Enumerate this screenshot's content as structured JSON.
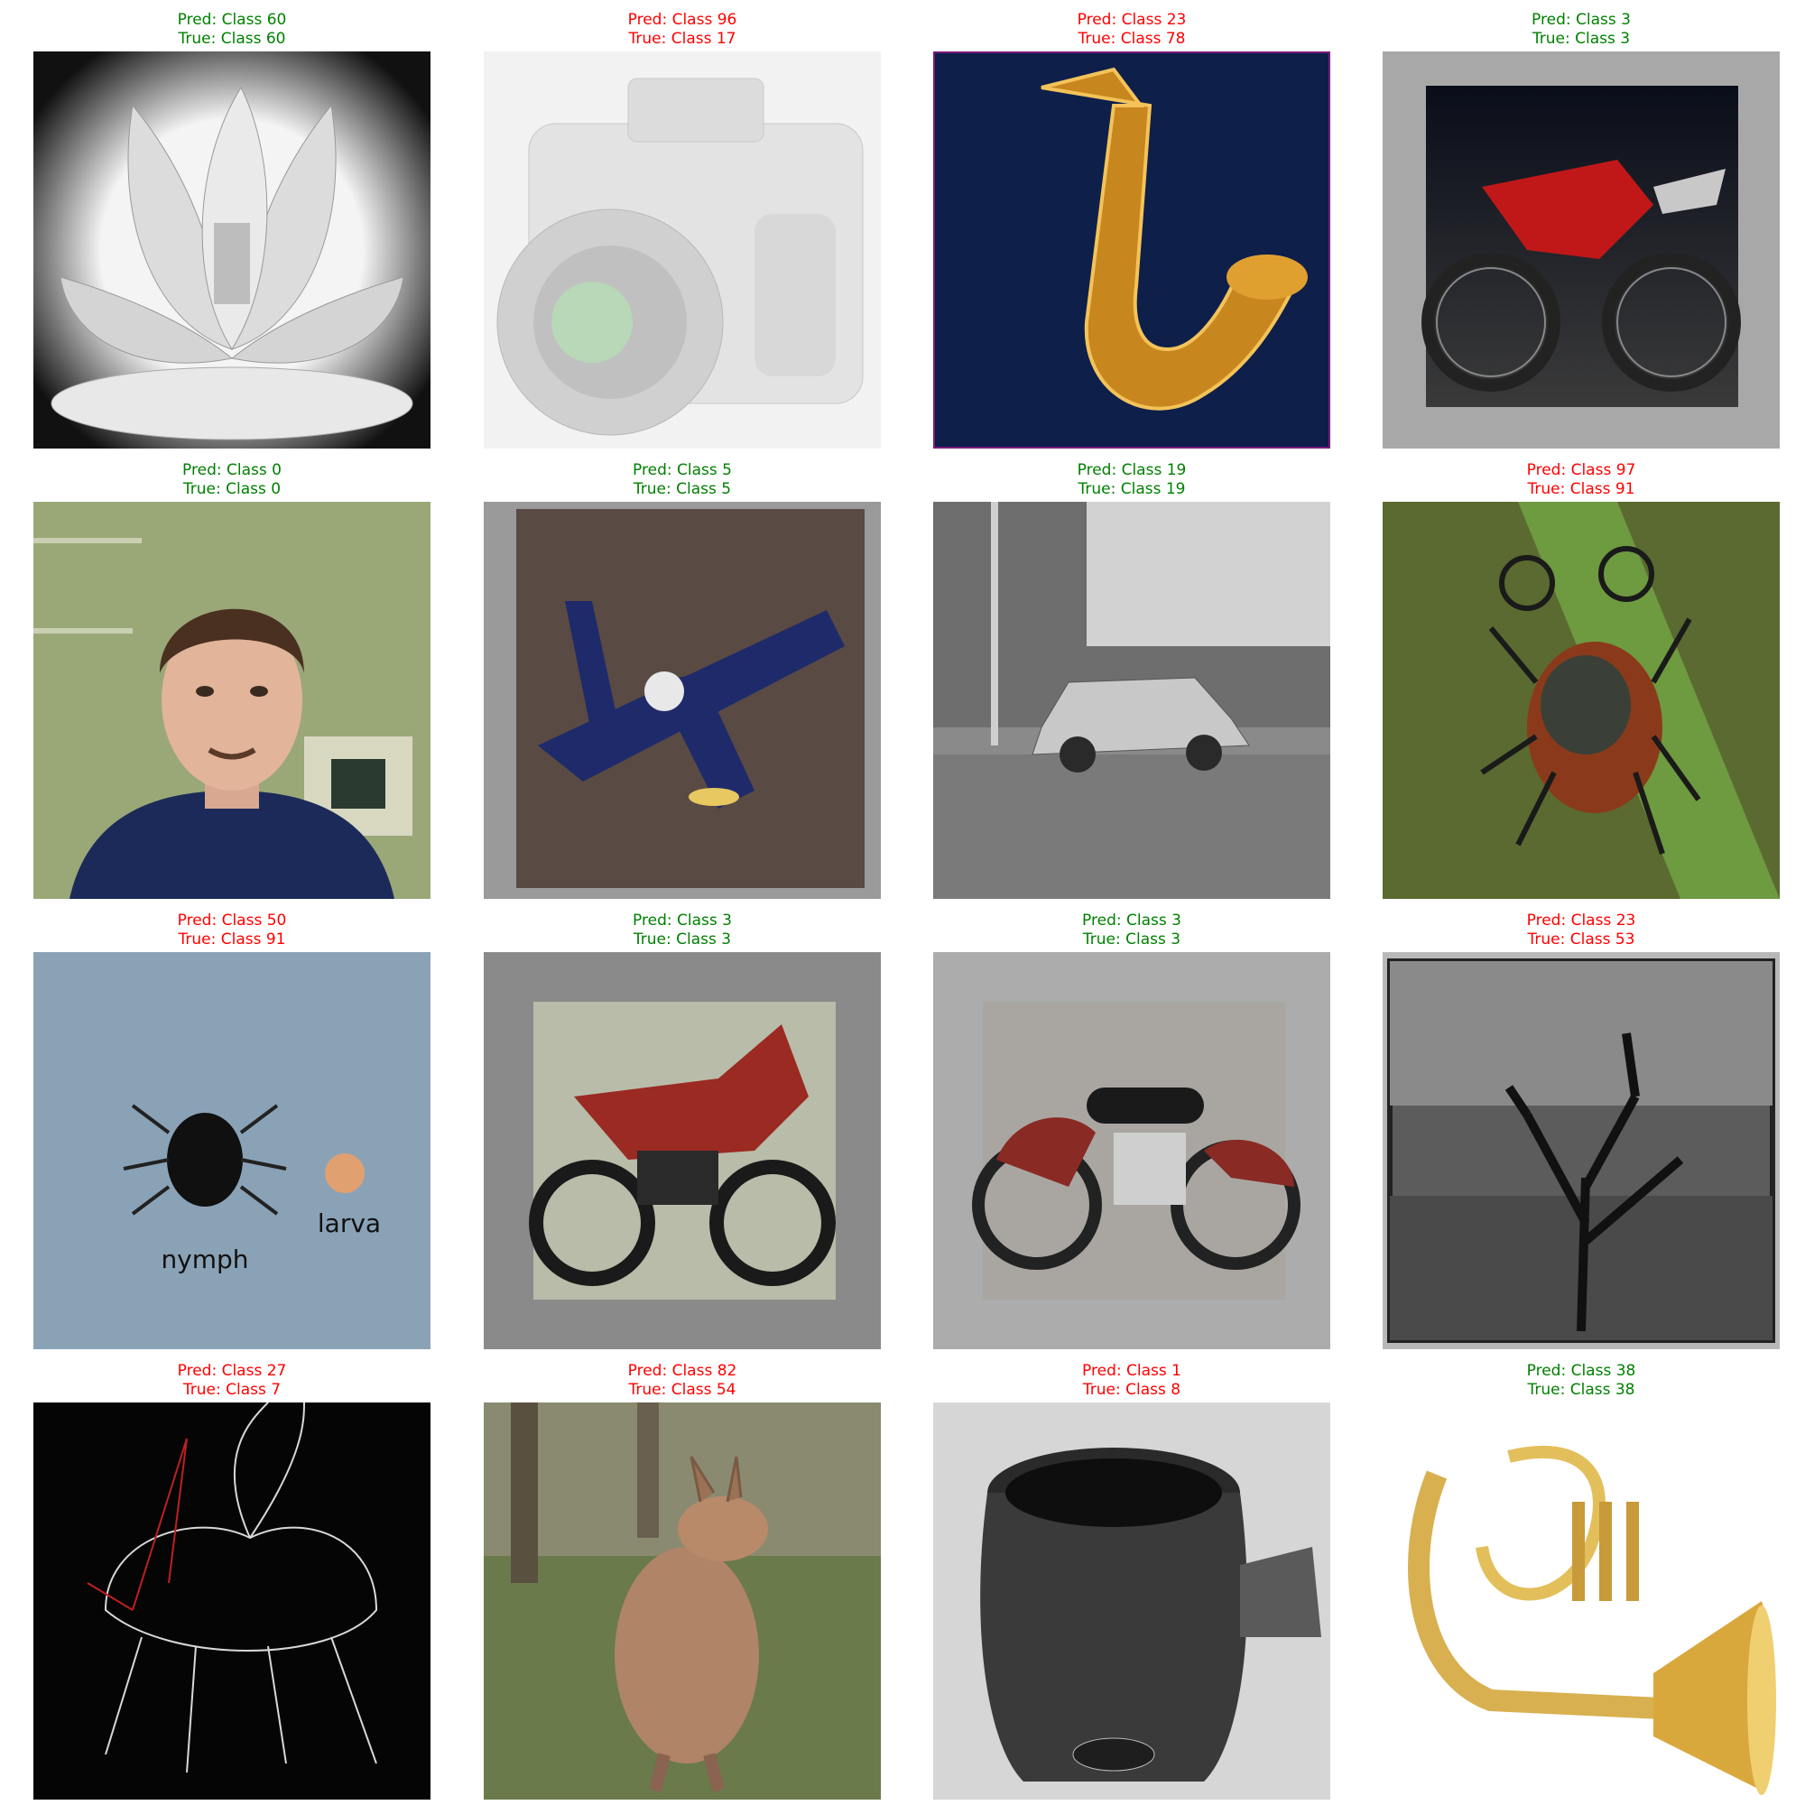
{
  "colors": {
    "correct": "#008000",
    "incorrect": "#ff0000"
  },
  "grid": [
    {
      "pred": "Pred: Class 60",
      "true": "True: Class 60",
      "correct": true,
      "image": "lotus-flower-grayscale"
    },
    {
      "pred": "Pred: Class 96",
      "true": "True: Class 17",
      "correct": false,
      "image": "faded-camera"
    },
    {
      "pred": "Pred: Class 23",
      "true": "True: Class 78",
      "correct": false,
      "image": "saxophone"
    },
    {
      "pred": "Pred: Class 3",
      "true": "True: Class 3",
      "correct": true,
      "image": "red-dirt-bike"
    },
    {
      "pred": "Pred: Class 0",
      "true": "True: Class 0",
      "correct": true,
      "image": "man-portrait"
    },
    {
      "pred": "Pred: Class 5",
      "true": "True: Class 5",
      "correct": true,
      "image": "navy-model-airplane"
    },
    {
      "pred": "Pred: Class 19",
      "true": "True: Class 19",
      "correct": true,
      "image": "car-street-grayscale"
    },
    {
      "pred": "Pred: Class 97",
      "true": "True: Class 91",
      "correct": false,
      "image": "tick-on-leaf"
    },
    {
      "pred": "Pred: Class 50",
      "true": "True: Class 91",
      "correct": false,
      "image": "tick-nymph-larva",
      "labels": [
        "nymph",
        "larva"
      ]
    },
    {
      "pred": "Pred: Class 3",
      "true": "True: Class 3",
      "correct": true,
      "image": "red-sport-motorcycle"
    },
    {
      "pred": "Pred: Class 3",
      "true": "True: Class 3",
      "correct": true,
      "image": "vintage-motorcycle"
    },
    {
      "pred": "Pred: Class 23",
      "true": "True: Class 53",
      "correct": false,
      "image": "joshua-tree-grayscale"
    },
    {
      "pred": "Pred: Class 27",
      "true": "True: Class 7",
      "correct": false,
      "image": "insect-diagram-negative"
    },
    {
      "pred": "Pred: Class 82",
      "true": "True: Class 54",
      "correct": false,
      "image": "kangaroo"
    },
    {
      "pred": "Pred: Class 1",
      "true": "True: Class 8",
      "correct": false,
      "image": "barrel-mug-grayscale"
    },
    {
      "pred": "Pred: Class 38",
      "true": "True: Class 38",
      "correct": true,
      "image": "euphonium"
    }
  ]
}
